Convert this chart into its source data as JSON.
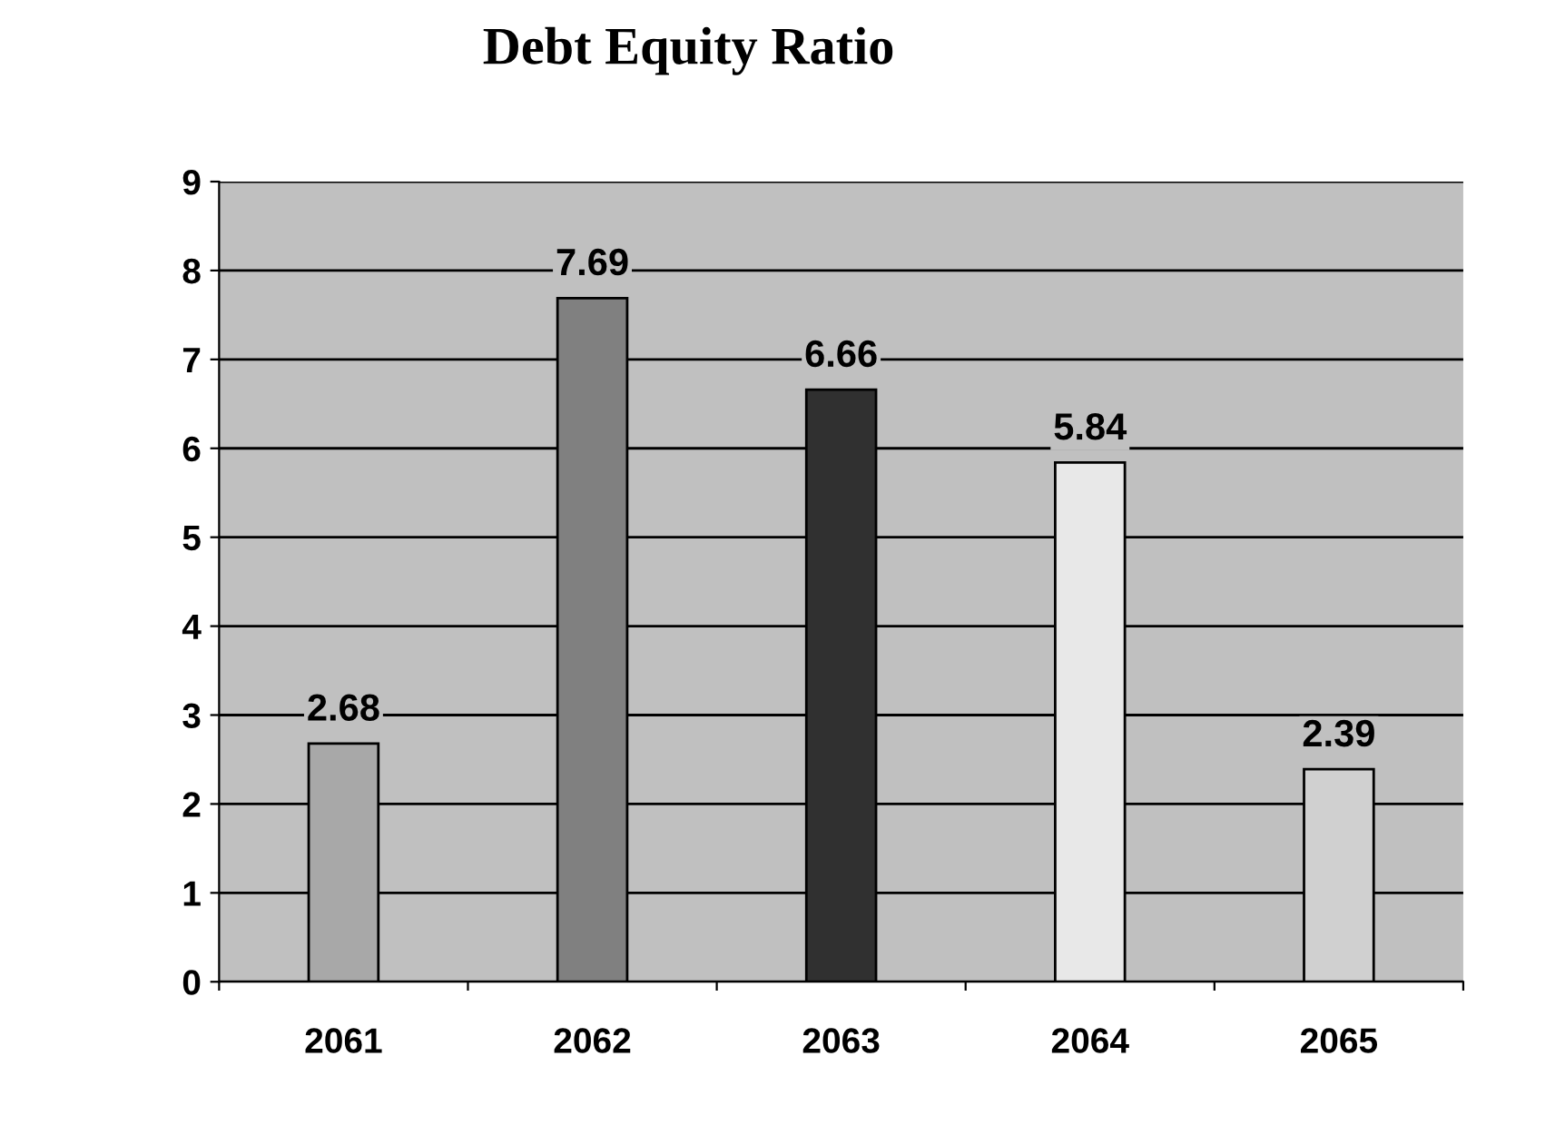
{
  "chart_data": {
    "type": "bar",
    "title": "Debt Equity Ratio",
    "categories": [
      "2061",
      "2062",
      "2063",
      "2064",
      "2065"
    ],
    "values": [
      2.68,
      7.69,
      6.66,
      5.84,
      2.39
    ],
    "colors": [
      "#a8a8a8",
      "#808080",
      "#303030",
      "#e8e8e8",
      "#d0d0d0"
    ],
    "ylim": [
      0,
      9
    ],
    "yticks": [
      0,
      1,
      2,
      3,
      4,
      5,
      6,
      7,
      8,
      9
    ],
    "grid": "y",
    "data_labels": true,
    "legend": false
  }
}
